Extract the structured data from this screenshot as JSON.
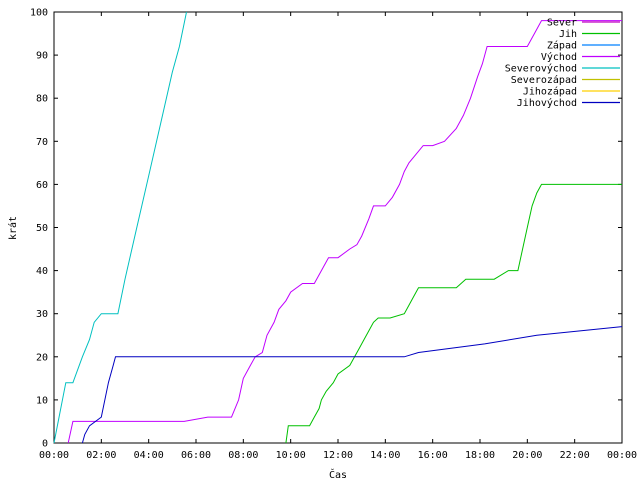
{
  "chart_data": {
    "type": "line",
    "xlabel": "Čas",
    "ylabel": "krát",
    "ylim": [
      0,
      100
    ],
    "xlim": [
      0,
      24
    ],
    "grid": false,
    "legend_position": "top-right",
    "x_tick_labels": [
      "00:00",
      "02:00",
      "04:00",
      "06:00",
      "08:00",
      "10:00",
      "12:00",
      "14:00",
      "16:00",
      "18:00",
      "20:00",
      "22:00",
      "00:00"
    ],
    "y_tick_labels": [
      "0",
      "10",
      "20",
      "30",
      "40",
      "50",
      "60",
      "70",
      "80",
      "90",
      "100"
    ],
    "series": [
      {
        "name": "Sever",
        "color": "#c000c0",
        "x": [],
        "y": []
      },
      {
        "name": "Jih",
        "color": "#00c000",
        "x": [
          9.8,
          9.9,
          10.8,
          11.0,
          11.2,
          11.3,
          11.5,
          11.8,
          12.0,
          12.5,
          12.7,
          12.9,
          13.1,
          13.3,
          13.5,
          13.7,
          13.9,
          14.2,
          14.8,
          15.0,
          15.2,
          15.4,
          16.0,
          17.0,
          17.4,
          18.0,
          18.6,
          19.2,
          19.6,
          19.8,
          20.0,
          20.2,
          20.4,
          20.6,
          24.0
        ],
        "y": [
          0,
          4,
          4,
          6,
          8,
          10,
          12,
          14,
          16,
          18,
          20,
          22,
          24,
          26,
          28,
          29,
          29,
          29,
          30,
          32,
          34,
          36,
          36,
          36,
          38,
          38,
          38,
          40,
          40,
          45,
          50,
          55,
          58,
          60,
          60
        ]
      },
      {
        "name": "Západ",
        "color": "#0080ff",
        "x": [],
        "y": []
      },
      {
        "name": "Východ",
        "color": "#c000ff",
        "x": [
          0.6,
          0.8,
          1.0,
          3.0,
          5.5,
          6.5,
          7.5,
          7.8,
          8.0,
          8.3,
          8.5,
          8.8,
          9.0,
          9.3,
          9.5,
          9.8,
          10.0,
          10.5,
          11.0,
          11.3,
          11.6,
          12.0,
          12.5,
          12.8,
          13.0,
          13.3,
          13.5,
          13.8,
          14.0,
          14.3,
          14.6,
          14.8,
          15.0,
          15.3,
          15.6,
          16.0,
          16.5,
          17.0,
          17.3,
          17.6,
          17.9,
          18.1,
          18.3,
          19.0,
          20.0,
          20.3,
          20.6,
          24.0
        ],
        "y": [
          0,
          5,
          5,
          5,
          5,
          6,
          6,
          10,
          15,
          18,
          20,
          21,
          25,
          28,
          31,
          33,
          35,
          37,
          37,
          40,
          43,
          43,
          45,
          46,
          48,
          52,
          55,
          55,
          55,
          57,
          60,
          63,
          65,
          67,
          69,
          69,
          70,
          73,
          76,
          80,
          85,
          88,
          92,
          92,
          92,
          95,
          98,
          98
        ]
      },
      {
        "name": "Severovýchod",
        "color": "#00c0c0",
        "x": [
          0,
          0.5,
          0.8,
          1.2,
          1.5,
          1.7,
          2.0,
          2.4,
          2.7,
          3.0,
          3.5,
          4.0,
          4.5,
          5.0,
          5.3,
          5.6
        ],
        "y": [
          0,
          14,
          14,
          20,
          24,
          28,
          30,
          30,
          30,
          38,
          50,
          62,
          74,
          86,
          92,
          100
        ]
      },
      {
        "name": "Severozápad",
        "color": "#c0c000",
        "x": [],
        "y": []
      },
      {
        "name": "Jihozápad",
        "color": "#ffd000",
        "x": [],
        "y": []
      },
      {
        "name": "Jihovýchod",
        "color": "#0000c0",
        "x": [
          1.2,
          1.3,
          1.5,
          2.0,
          2.3,
          2.5,
          2.6,
          14.8,
          15.4,
          18.2,
          20.4,
          24.0
        ],
        "y": [
          0,
          2,
          4,
          6,
          14,
          18,
          20,
          20,
          21,
          23,
          25,
          27
        ]
      }
    ]
  }
}
